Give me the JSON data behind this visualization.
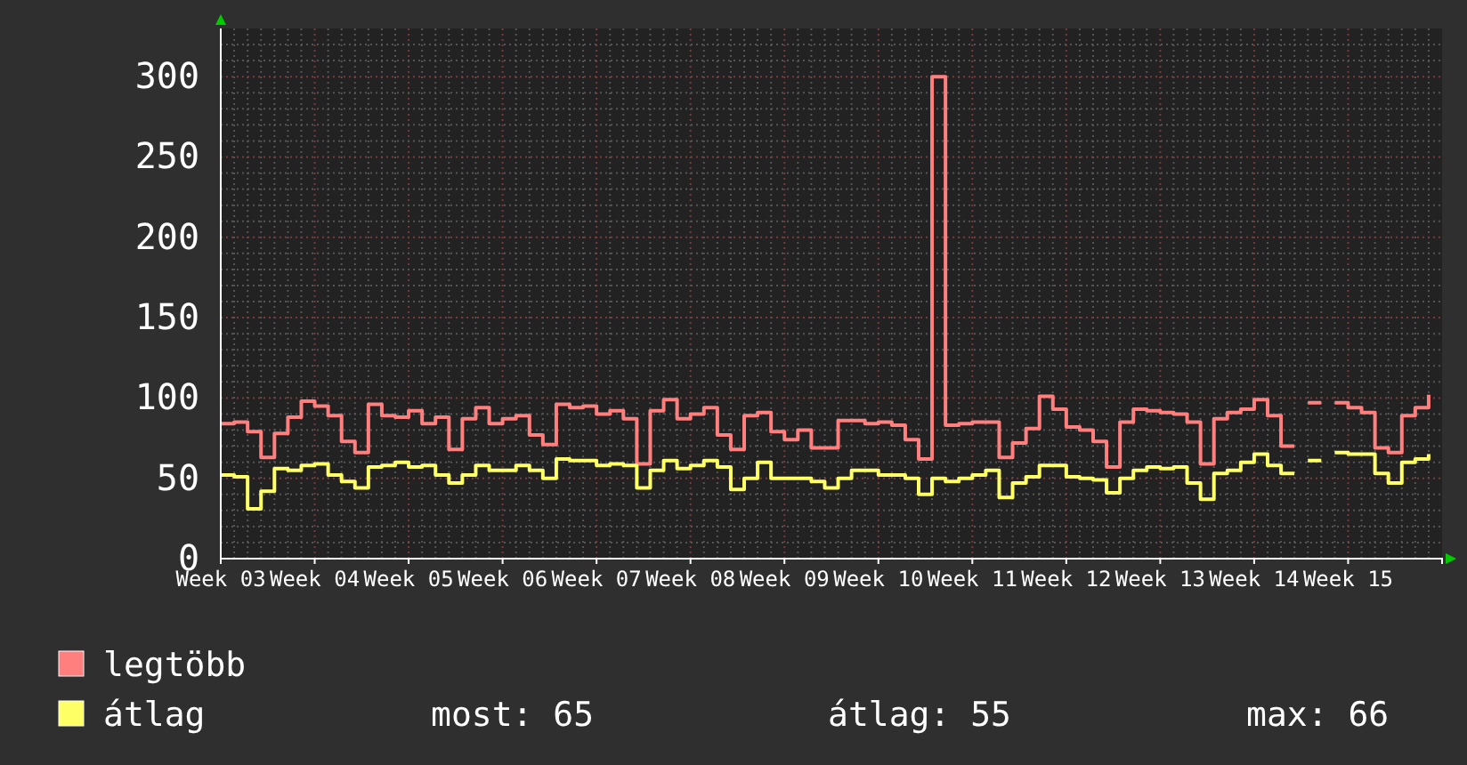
{
  "chart_data": {
    "type": "step",
    "categories": [
      "Week 03",
      null,
      null,
      null,
      null,
      null,
      null,
      "Week 04",
      null,
      null,
      null,
      null,
      null,
      null,
      "Week 05",
      null,
      null,
      null,
      null,
      null,
      null,
      "Week 06",
      null,
      null,
      null,
      null,
      null,
      null,
      "Week 07",
      null,
      null,
      null,
      null,
      null,
      null,
      "Week 08",
      null,
      null,
      null,
      null,
      null,
      null,
      "Week 09",
      null,
      null,
      null,
      null,
      null,
      null,
      "Week 10",
      null,
      null,
      null,
      null,
      null,
      null,
      "Week 11",
      null,
      null,
      null,
      null,
      null,
      null,
      "Week 12",
      null,
      null,
      null,
      null,
      null,
      null,
      "Week 13",
      null,
      null,
      null,
      null,
      null,
      null,
      "Week 14",
      null,
      null,
      null,
      null,
      null,
      null,
      "Week 15",
      null,
      null,
      null,
      null,
      null,
      null
    ],
    "series": [
      {
        "name": "legtöbb",
        "color": "#ff7f7f",
        "values": [
          84,
          85,
          79,
          63,
          78,
          88,
          98,
          95,
          89,
          73,
          66,
          96,
          89,
          88,
          92,
          84,
          88,
          68,
          87,
          94,
          84,
          87,
          89,
          77,
          71,
          96,
          94,
          95,
          90,
          92,
          87,
          59,
          92,
          99,
          87,
          90,
          94,
          77,
          68,
          89,
          91,
          79,
          74,
          80,
          69,
          69,
          86,
          86,
          84,
          85,
          83,
          74,
          62,
          300,
          83,
          84,
          85,
          85,
          63,
          72,
          81,
          101,
          93,
          82,
          80,
          73,
          57,
          85,
          93,
          92,
          91,
          90,
          85,
          59,
          87,
          91,
          93,
          99,
          89,
          70,
          null,
          97,
          null,
          97,
          94,
          91,
          69,
          66,
          89,
          94,
          102
        ]
      },
      {
        "name": "átlag",
        "color": "#ffff66",
        "values": [
          52,
          51,
          31,
          42,
          56,
          55,
          58,
          59,
          52,
          48,
          44,
          57,
          58,
          60,
          57,
          58,
          52,
          47,
          52,
          58,
          55,
          55,
          58,
          55,
          50,
          62,
          61,
          61,
          58,
          59,
          58,
          44,
          55,
          61,
          56,
          58,
          61,
          57,
          43,
          50,
          60,
          50,
          50,
          50,
          48,
          44,
          50,
          55,
          55,
          52,
          52,
          50,
          40,
          50,
          48,
          50,
          52,
          55,
          38,
          47,
          51,
          58,
          58,
          51,
          50,
          49,
          41,
          50,
          55,
          57,
          56,
          57,
          47,
          37,
          53,
          55,
          60,
          65,
          58,
          53,
          null,
          61,
          null,
          66,
          65,
          65,
          53,
          47,
          60,
          62,
          65
        ]
      }
    ],
    "ylim": [
      0,
      330
    ],
    "yticks": [
      0,
      50,
      100,
      150,
      200,
      250,
      300
    ],
    "grid": true,
    "legend": "bottom",
    "annotations": [
      "most: 65",
      "átlag: 55",
      "max: 66"
    ]
  }
}
